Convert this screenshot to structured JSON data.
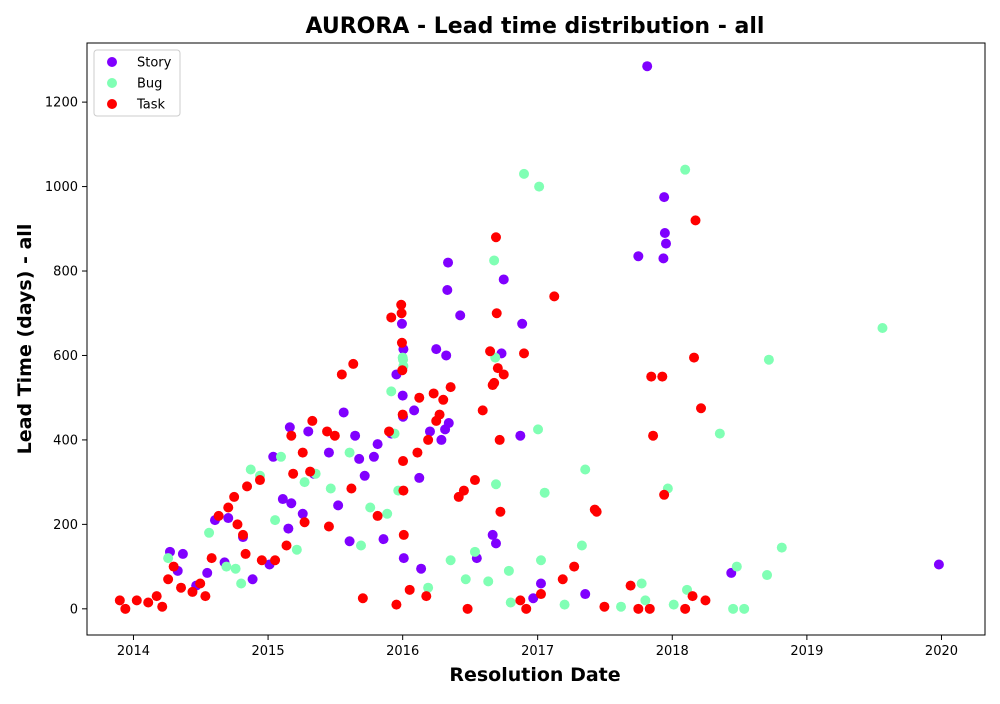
{
  "chart_data": {
    "type": "scatter",
    "title": "AURORA - Lead time distribution - all",
    "xlabel": "Resolution Date",
    "ylabel": "Lead Time (days) - all",
    "x_ticks": [
      "2014",
      "2015",
      "2016",
      "2017",
      "2018",
      "2019",
      "2020"
    ],
    "y_ticks": [
      "0",
      "200",
      "400",
      "600",
      "800",
      "1000",
      "1200"
    ],
    "ylim": [
      -62,
      1340
    ],
    "xlim": [
      "2013-08-28",
      "2020-04-28"
    ],
    "grid": false,
    "legend_position": "top-left",
    "series": [
      {
        "name": "Story",
        "color": "#8000ff",
        "points": [
          {
            "x": "2014-05-01",
            "y": 90
          },
          {
            "x": "2014-04-10",
            "y": 135
          },
          {
            "x": "2014-05-15",
            "y": 130
          },
          {
            "x": "2014-07-20",
            "y": 85
          },
          {
            "x": "2014-08-10",
            "y": 210
          },
          {
            "x": "2014-09-15",
            "y": 215
          },
          {
            "x": "2014-10-25",
            "y": 170
          },
          {
            "x": "2014-11-20",
            "y": 70
          },
          {
            "x": "2015-01-05",
            "y": 105
          },
          {
            "x": "2015-01-15",
            "y": 360
          },
          {
            "x": "2015-02-10",
            "y": 260
          },
          {
            "x": "2015-03-01",
            "y": 430
          },
          {
            "x": "2015-03-05",
            "y": 250
          },
          {
            "x": "2015-04-05",
            "y": 225
          },
          {
            "x": "2015-04-20",
            "y": 420
          },
          {
            "x": "2015-05-05",
            "y": 320
          },
          {
            "x": "2015-06-15",
            "y": 370
          },
          {
            "x": "2015-07-10",
            "y": 245
          },
          {
            "x": "2015-07-25",
            "y": 465
          },
          {
            "x": "2015-08-10",
            "y": 160
          },
          {
            "x": "2015-08-25",
            "y": 410
          },
          {
            "x": "2015-09-05",
            "y": 355
          },
          {
            "x": "2015-10-15",
            "y": 360
          },
          {
            "x": "2015-10-25",
            "y": 390
          },
          {
            "x": "2015-11-10",
            "y": 165
          },
          {
            "x": "2015-12-01",
            "y": 415
          },
          {
            "x": "2015-12-15",
            "y": 555
          },
          {
            "x": "2015-12-30",
            "y": 675
          },
          {
            "x": "2016-01-01",
            "y": 505
          },
          {
            "x": "2016-01-02",
            "y": 455
          },
          {
            "x": "2016-01-03",
            "y": 615
          },
          {
            "x": "2016-01-04",
            "y": 120
          },
          {
            "x": "2016-02-15",
            "y": 310
          },
          {
            "x": "2016-02-01",
            "y": 470
          },
          {
            "x": "2016-03-15",
            "y": 420
          },
          {
            "x": "2016-04-01",
            "y": 615
          },
          {
            "x": "2016-04-15",
            "y": 400
          },
          {
            "x": "2016-04-25",
            "y": 425
          },
          {
            "x": "2016-04-28",
            "y": 600
          },
          {
            "x": "2016-05-01",
            "y": 755
          },
          {
            "x": "2016-05-03",
            "y": 820
          },
          {
            "x": "2016-05-05",
            "y": 440
          },
          {
            "x": "2016-06-05",
            "y": 695
          },
          {
            "x": "2016-07-20",
            "y": 120
          },
          {
            "x": "2016-09-01",
            "y": 175
          },
          {
            "x": "2016-09-10",
            "y": 155
          },
          {
            "x": "2016-09-25",
            "y": 605
          },
          {
            "x": "2016-10-01",
            "y": 780
          },
          {
            "x": "2016-11-20",
            "y": 675
          },
          {
            "x": "2016-11-15",
            "y": 410
          },
          {
            "x": "2017-01-10",
            "y": 60
          },
          {
            "x": "2017-05-10",
            "y": 35
          },
          {
            "x": "2017-10-01",
            "y": 835
          },
          {
            "x": "2017-10-25",
            "y": 1285
          },
          {
            "x": "2017-12-10",
            "y": 975
          },
          {
            "x": "2017-12-12",
            "y": 890
          },
          {
            "x": "2017-12-15",
            "y": 865
          },
          {
            "x": "2017-12-08",
            "y": 830
          },
          {
            "x": "2018-06-10",
            "y": 85
          },
          {
            "x": "2019-12-25",
            "y": 105
          },
          {
            "x": "2015-02-25",
            "y": 190
          },
          {
            "x": "2014-06-20",
            "y": 55
          },
          {
            "x": "2015-09-20",
            "y": 315
          },
          {
            "x": "2016-02-20",
            "y": 95
          },
          {
            "x": "2016-12-20",
            "y": 25
          },
          {
            "x": "2014-09-05",
            "y": 110
          }
        ]
      },
      {
        "name": "Bug",
        "color": "#80ffb4",
        "points": [
          {
            "x": "2014-04-05",
            "y": 120
          },
          {
            "x": "2014-07-25",
            "y": 180
          },
          {
            "x": "2014-09-10",
            "y": 100
          },
          {
            "x": "2014-10-20",
            "y": 60
          },
          {
            "x": "2014-11-15",
            "y": 330
          },
          {
            "x": "2014-12-10",
            "y": 315
          },
          {
            "x": "2015-01-20",
            "y": 210
          },
          {
            "x": "2015-02-05",
            "y": 360
          },
          {
            "x": "2015-04-10",
            "y": 300
          },
          {
            "x": "2015-05-10",
            "y": 320
          },
          {
            "x": "2015-06-20",
            "y": 285
          },
          {
            "x": "2015-08-10",
            "y": 370
          },
          {
            "x": "2015-10-05",
            "y": 240
          },
          {
            "x": "2015-11-20",
            "y": 225
          },
          {
            "x": "2015-12-01",
            "y": 515
          },
          {
            "x": "2015-12-10",
            "y": 415
          },
          {
            "x": "2015-12-20",
            "y": 280
          },
          {
            "x": "2016-01-01",
            "y": 595
          },
          {
            "x": "2016-01-02",
            "y": 590
          },
          {
            "x": "2016-01-03",
            "y": 575
          },
          {
            "x": "2016-05-10",
            "y": 115
          },
          {
            "x": "2016-06-20",
            "y": 70
          },
          {
            "x": "2016-07-15",
            "y": 135
          },
          {
            "x": "2016-08-20",
            "y": 65
          },
          {
            "x": "2016-09-05",
            "y": 825
          },
          {
            "x": "2016-09-08",
            "y": 595
          },
          {
            "x": "2016-09-10",
            "y": 295
          },
          {
            "x": "2016-10-15",
            "y": 90
          },
          {
            "x": "2016-11-25",
            "y": 1030
          },
          {
            "x": "2017-01-05",
            "y": 1000
          },
          {
            "x": "2017-01-02",
            "y": 425
          },
          {
            "x": "2017-01-20",
            "y": 275
          },
          {
            "x": "2017-01-10",
            "y": 115
          },
          {
            "x": "2017-05-10",
            "y": 330
          },
          {
            "x": "2017-05-01",
            "y": 150
          },
          {
            "x": "2017-08-15",
            "y": 5
          },
          {
            "x": "2017-10-10",
            "y": 60
          },
          {
            "x": "2017-12-20",
            "y": 285
          },
          {
            "x": "2018-02-05",
            "y": 1040
          },
          {
            "x": "2018-02-10",
            "y": 45
          },
          {
            "x": "2018-05-10",
            "y": 415
          },
          {
            "x": "2018-06-25",
            "y": 100
          },
          {
            "x": "2018-07-15",
            "y": 0
          },
          {
            "x": "2018-09-20",
            "y": 590
          },
          {
            "x": "2018-09-15",
            "y": 80
          },
          {
            "x": "2018-10-25",
            "y": 145
          },
          {
            "x": "2019-07-25",
            "y": 665
          },
          {
            "x": "2018-06-15",
            "y": 0
          },
          {
            "x": "2017-10-20",
            "y": 20
          },
          {
            "x": "2018-01-05",
            "y": 10
          },
          {
            "x": "2015-03-20",
            "y": 140
          },
          {
            "x": "2015-09-10",
            "y": 150
          },
          {
            "x": "2014-10-05",
            "y": 95
          },
          {
            "x": "2016-03-10",
            "y": 50
          },
          {
            "x": "2016-10-20",
            "y": 15
          },
          {
            "x": "2017-03-15",
            "y": 10
          }
        ]
      },
      {
        "name": "Task",
        "color": "#ff0000",
        "points": [
          {
            "x": "2013-11-25",
            "y": 20
          },
          {
            "x": "2013-12-10",
            "y": 0
          },
          {
            "x": "2014-01-10",
            "y": 20
          },
          {
            "x": "2014-02-10",
            "y": 15
          },
          {
            "x": "2014-03-05",
            "y": 30
          },
          {
            "x": "2014-04-05",
            "y": 70
          },
          {
            "x": "2014-04-20",
            "y": 100
          },
          {
            "x": "2014-05-10",
            "y": 50
          },
          {
            "x": "2014-06-10",
            "y": 40
          },
          {
            "x": "2014-07-15",
            "y": 30
          },
          {
            "x": "2014-08-20",
            "y": 220
          },
          {
            "x": "2014-09-15",
            "y": 240
          },
          {
            "x": "2014-10-01",
            "y": 265
          },
          {
            "x": "2014-10-10",
            "y": 200
          },
          {
            "x": "2014-10-25",
            "y": 175
          },
          {
            "x": "2014-11-05",
            "y": 290
          },
          {
            "x": "2014-12-10",
            "y": 305
          },
          {
            "x": "2015-01-20",
            "y": 115
          },
          {
            "x": "2015-03-05",
            "y": 410
          },
          {
            "x": "2015-03-10",
            "y": 320
          },
          {
            "x": "2015-04-05",
            "y": 370
          },
          {
            "x": "2015-04-25",
            "y": 325
          },
          {
            "x": "2015-05-01",
            "y": 445
          },
          {
            "x": "2015-06-10",
            "y": 420
          },
          {
            "x": "2015-07-01",
            "y": 410
          },
          {
            "x": "2015-07-20",
            "y": 555
          },
          {
            "x": "2015-08-15",
            "y": 285
          },
          {
            "x": "2015-08-20",
            "y": 580
          },
          {
            "x": "2015-10-25",
            "y": 220
          },
          {
            "x": "2015-11-25",
            "y": 420
          },
          {
            "x": "2015-12-01",
            "y": 690
          },
          {
            "x": "2015-12-28",
            "y": 720
          },
          {
            "x": "2015-12-29",
            "y": 700
          },
          {
            "x": "2015-12-30",
            "y": 630
          },
          {
            "x": "2015-12-31",
            "y": 565
          },
          {
            "x": "2016-01-01",
            "y": 460
          },
          {
            "x": "2016-01-02",
            "y": 350
          },
          {
            "x": "2016-01-03",
            "y": 280
          },
          {
            "x": "2016-01-04",
            "y": 175
          },
          {
            "x": "2016-02-10",
            "y": 370
          },
          {
            "x": "2016-02-15",
            "y": 500
          },
          {
            "x": "2016-03-10",
            "y": 400
          },
          {
            "x": "2016-03-25",
            "y": 510
          },
          {
            "x": "2016-04-01",
            "y": 445
          },
          {
            "x": "2016-04-10",
            "y": 460
          },
          {
            "x": "2016-04-20",
            "y": 495
          },
          {
            "x": "2016-05-10",
            "y": 525
          },
          {
            "x": "2016-06-01",
            "y": 265
          },
          {
            "x": "2016-06-15",
            "y": 280
          },
          {
            "x": "2016-07-15",
            "y": 305
          },
          {
            "x": "2016-08-05",
            "y": 470
          },
          {
            "x": "2016-08-25",
            "y": 610
          },
          {
            "x": "2016-09-01",
            "y": 530
          },
          {
            "x": "2016-09-05",
            "y": 535
          },
          {
            "x": "2016-09-10",
            "y": 880
          },
          {
            "x": "2016-09-12",
            "y": 700
          },
          {
            "x": "2016-09-15",
            "y": 570
          },
          {
            "x": "2016-09-20",
            "y": 400
          },
          {
            "x": "2016-09-22",
            "y": 230
          },
          {
            "x": "2016-10-01",
            "y": 555
          },
          {
            "x": "2016-11-25",
            "y": 605
          },
          {
            "x": "2017-02-15",
            "y": 740
          },
          {
            "x": "2017-06-05",
            "y": 235
          },
          {
            "x": "2017-06-10",
            "y": 230
          },
          {
            "x": "2017-09-10",
            "y": 55
          },
          {
            "x": "2017-11-05",
            "y": 550
          },
          {
            "x": "2017-11-10",
            "y": 410
          },
          {
            "x": "2017-12-05",
            "y": 550
          },
          {
            "x": "2017-12-10",
            "y": 270
          },
          {
            "x": "2018-03-05",
            "y": 920
          },
          {
            "x": "2018-03-01",
            "y": 595
          },
          {
            "x": "2018-03-20",
            "y": 475
          },
          {
            "x": "2018-04-01",
            "y": 20
          },
          {
            "x": "2018-02-25",
            "y": 30
          },
          {
            "x": "2018-02-05",
            "y": 0
          },
          {
            "x": "2017-11-01",
            "y": 0
          },
          {
            "x": "2017-10-01",
            "y": 0
          },
          {
            "x": "2017-04-10",
            "y": 100
          },
          {
            "x": "2017-03-10",
            "y": 70
          },
          {
            "x": "2017-01-10",
            "y": 35
          },
          {
            "x": "2016-12-01",
            "y": 0
          },
          {
            "x": "2016-06-25",
            "y": 0
          },
          {
            "x": "2016-03-05",
            "y": 30
          },
          {
            "x": "2015-12-15",
            "y": 10
          },
          {
            "x": "2015-06-15",
            "y": 195
          },
          {
            "x": "2015-04-10",
            "y": 205
          },
          {
            "x": "2015-02-20",
            "y": 150
          },
          {
            "x": "2014-12-15",
            "y": 115
          },
          {
            "x": "2014-11-01",
            "y": 130
          },
          {
            "x": "2014-08-01",
            "y": 120
          },
          {
            "x": "2014-07-01",
            "y": 60
          },
          {
            "x": "2014-03-20",
            "y": 5
          },
          {
            "x": "2015-09-15",
            "y": 25
          },
          {
            "x": "2016-01-20",
            "y": 45
          },
          {
            "x": "2016-11-15",
            "y": 20
          },
          {
            "x": "2017-07-01",
            "y": 5
          }
        ]
      }
    ]
  }
}
